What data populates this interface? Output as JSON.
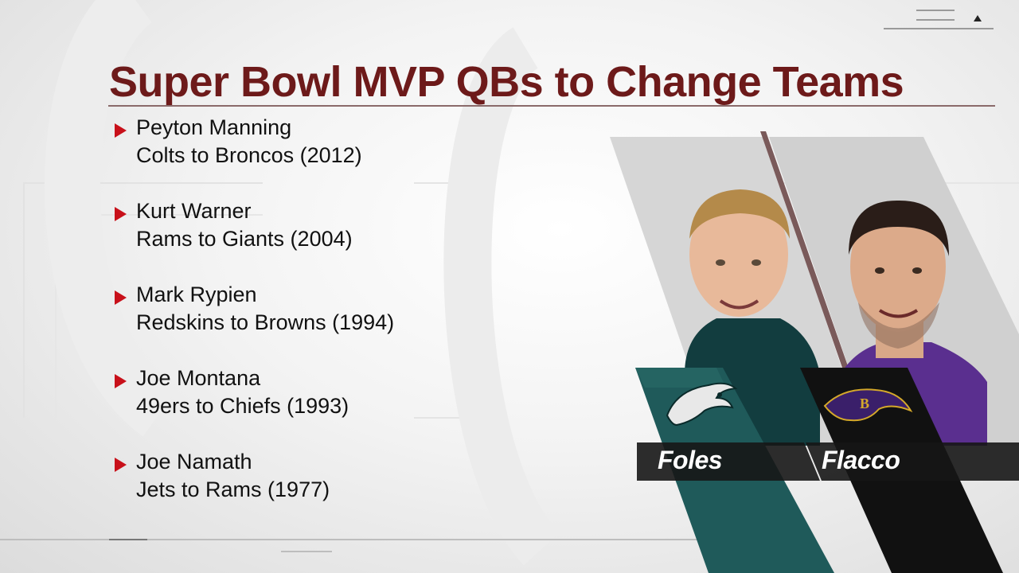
{
  "title": "Super Bowl MVP QBs to Change Teams",
  "players": [
    {
      "name": "Peyton Manning",
      "move": "Colts to Broncos (2012)"
    },
    {
      "name": "Kurt Warner",
      "move": "Rams to Giants (2004)"
    },
    {
      "name": "Mark Rypien",
      "move": "Redskins to Browns (1994)"
    },
    {
      "name": "Joe Montana",
      "move": "49ers to Chiefs (1993)"
    },
    {
      "name": "Joe Namath",
      "move": "Jets to Rams (1977)"
    }
  ],
  "featured": [
    {
      "label": "Foles",
      "team_logo": "eagles-logo",
      "jersey_color": "#0f4a4e"
    },
    {
      "label": "Flacco",
      "team_logo": "ravens-logo",
      "jersey_color": "#5a2f8f"
    }
  ],
  "colors": {
    "title": "#6d1a1a",
    "bullet": "#c8101a",
    "eagles_green": "#1f5a5a",
    "ravens_black": "#111111"
  }
}
